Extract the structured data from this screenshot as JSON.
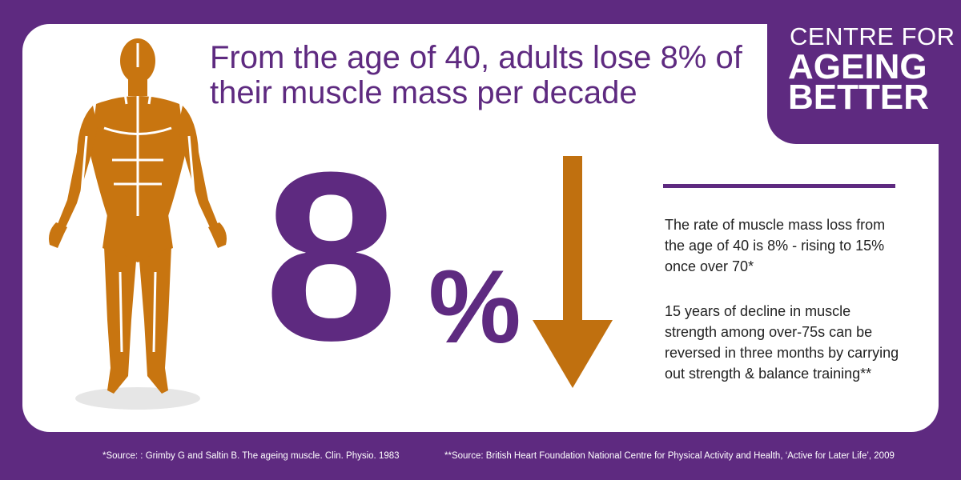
{
  "logo": {
    "line1": "CENTRE FOR",
    "line2": "AGEING",
    "line3": "BETTER"
  },
  "headline": "From the age of 40, adults lose 8% of their muscle mass per decade",
  "stat": {
    "value": "8",
    "unit": "%"
  },
  "facts": [
    "The rate of muscle mass loss from the age of 40 is 8% - rising to 15% once over 70*",
    "15 years of decline in muscle strength among over-75s can be reversed in three months by carrying out strength & balance training**"
  ],
  "sources": [
    "*Source: : Grimby G and Saltin B. The ageing muscle. Clin. Physio. 1983",
    "**Source: British Heart Foundation National Centre for Physical Activity and Health, ‘Active for Later Life’, 2009"
  ],
  "colors": {
    "brand_purple": "#5e2a80",
    "muscle_orange": "#c87510",
    "arrow_orange": "#c0700f"
  },
  "icons": {
    "figure": "human-muscle-figure-icon",
    "arrow": "down-arrow-icon"
  }
}
